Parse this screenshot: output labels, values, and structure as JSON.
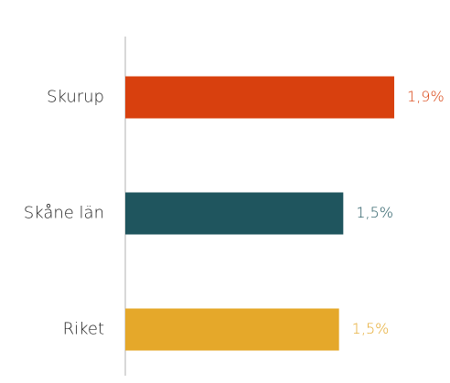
{
  "chart_data": {
    "type": "hbar",
    "categories": [
      "Skurup",
      "Skåne län",
      "Riket"
    ],
    "values": [
      1.9,
      1.54,
      1.51
    ],
    "value_labels": [
      "1,9%",
      "1,5%",
      "1,5%"
    ],
    "colors": [
      "#d8400e",
      "#1f555e",
      "#e5a82a"
    ],
    "xlim": [
      0,
      2
    ]
  }
}
